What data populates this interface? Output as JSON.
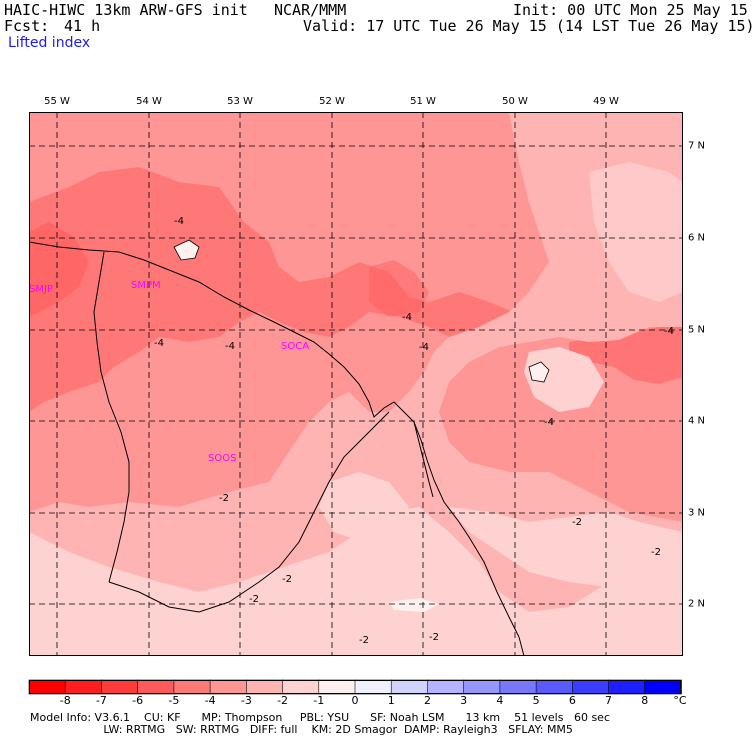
{
  "header": {
    "model_line": "HAIC-HIWC 13km ARW-GFS init",
    "center": "NCAR/MMM",
    "init": "Init: 00 UTC Mon 25 May 15",
    "fcst_label": "Fcst:",
    "fcst_value": "41 h",
    "valid": "Valid: 17 UTC Tue 26 May 15 (14 LST Tue 26 May 15)",
    "field": "Lifted index"
  },
  "map": {
    "lon_labels": [
      "55 W",
      "54 W",
      "53 W",
      "52 W",
      "51 W",
      "50 W",
      "49 W"
    ],
    "lat_labels": [
      "7 N",
      "6 N",
      "5 N",
      "4 N",
      "3 N",
      "2 N"
    ],
    "stations": [
      "SMJP",
      "SOCA",
      "SOOS"
    ],
    "station_marker": "SMPM",
    "contour_labels": [
      "-4",
      "-4",
      "-4",
      "-4",
      "-4",
      "-4",
      "-4",
      "-2",
      "-2",
      "-2",
      "-2",
      "-2",
      "-2",
      "-2"
    ],
    "colors": {
      "very_light": "#ffd2d2",
      "light": "#ffb4b4",
      "medium": "#ff9696",
      "dark": "#ff7878",
      "darkest": "#ff5a5a",
      "coast": "#000000"
    }
  },
  "colorbar": {
    "labels": [
      "-8",
      "-7",
      "-6",
      "-5",
      "-4",
      "-3",
      "-2",
      "-1",
      "0",
      "1",
      "2",
      "3",
      "4",
      "5",
      "6",
      "7",
      "8"
    ],
    "unit": "°C",
    "colors": [
      "#ff0000",
      "#ff1e1e",
      "#ff3c3c",
      "#ff5a5a",
      "#ff7878",
      "#ff9696",
      "#ffb4b4",
      "#ffd2d2",
      "#fff0f0",
      "#f0f0ff",
      "#d2d2ff",
      "#b4b4ff",
      "#9696ff",
      "#7878ff",
      "#5a5aff",
      "#3c3cff",
      "#1e1eff",
      "#0000ff"
    ]
  },
  "footer": {
    "line1": "Model Info: V3.6.1    CU: KF      MP: Thompson     PBL: YSU      SF: Noah LSM      13 km    51 levels   60 sec",
    "line2": "                     LW: RRTMG   SW: RRTMG   DIFF: full    KM: 2D Smagor  DAMP: Rayleigh3   SFLAY: MM5"
  }
}
